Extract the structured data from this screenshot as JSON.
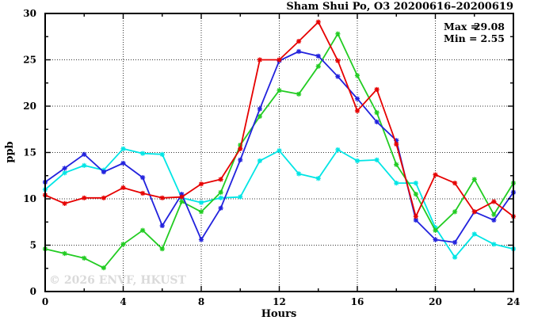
{
  "title": "Sham Shui Po, O3 20200616–20200619",
  "axes": {
    "xlabel": "Hours",
    "ylabel": "ppb"
  },
  "annotation": {
    "max_label": "Max =",
    "max_value": "29.08",
    "min_label": "Min =",
    "min_value": "2.55"
  },
  "watermark": "© 2026 ENVF, HKUST",
  "colors": {
    "red": "#e60000",
    "blue": "#2222dd",
    "green": "#22cc22",
    "cyan": "#00e5e5",
    "grid": "#333333",
    "frame": "#000000",
    "watermark": "#dadada"
  },
  "chart_data": {
    "type": "line",
    "title": "Sham Shui Po, O3 20200616–20200619",
    "xlabel": "Hours",
    "ylabel": "ppb",
    "xlim": [
      0,
      24
    ],
    "ylim": [
      0,
      30
    ],
    "x_major_ticks": [
      0,
      4,
      8,
      12,
      16,
      20,
      24
    ],
    "x_minor_ticks": [
      2,
      6,
      10,
      14,
      18,
      22
    ],
    "y_major_ticks": [
      0,
      5,
      10,
      15,
      20,
      25,
      30
    ],
    "y_minor_ticks": [
      2.5,
      7.5,
      12.5,
      17.5,
      22.5,
      27.5
    ],
    "grid": "dotted lines at interior major ticks",
    "legend": "none",
    "marker": "asterisk",
    "annotations": [
      "Max = 29.08",
      "Min =  2.55"
    ],
    "x": [
      0,
      1,
      2,
      3,
      4,
      5,
      6,
      7,
      8,
      9,
      10,
      11,
      12,
      13,
      14,
      15,
      16,
      17,
      18,
      19,
      20,
      21,
      22,
      23,
      24
    ],
    "series": [
      {
        "name": "cyan",
        "color": "#00e5e5",
        "values": [
          11.0,
          12.8,
          13.6,
          13.1,
          15.4,
          14.9,
          14.8,
          10.1,
          9.6,
          10.1,
          10.2,
          14.1,
          15.2,
          12.7,
          12.2,
          15.3,
          14.1,
          14.2,
          11.7,
          11.7,
          6.9,
          3.7,
          6.2,
          5.1,
          4.6
        ]
      },
      {
        "name": "green",
        "color": "#22cc22",
        "values": [
          4.6,
          4.1,
          3.6,
          2.55,
          5.1,
          6.6,
          4.6,
          9.7,
          8.6,
          10.7,
          15.8,
          18.9,
          21.7,
          21.3,
          24.3,
          27.8,
          23.3,
          19.3,
          13.7,
          10.5,
          6.6,
          8.6,
          12.1,
          8.3,
          11.7
        ]
      },
      {
        "name": "blue",
        "color": "#2222dd",
        "values": [
          11.8,
          13.3,
          14.8,
          12.9,
          13.85,
          12.3,
          7.1,
          10.5,
          5.6,
          9.0,
          14.2,
          19.7,
          24.9,
          25.9,
          25.4,
          23.2,
          20.8,
          18.3,
          16.3,
          7.7,
          5.6,
          5.3,
          8.6,
          7.7,
          10.7
        ]
      },
      {
        "name": "red",
        "color": "#e60000",
        "values": [
          10.4,
          9.5,
          10.1,
          10.1,
          11.2,
          10.6,
          10.1,
          10.2,
          11.6,
          12.1,
          15.4,
          25.0,
          25.0,
          27.0,
          29.08,
          24.9,
          19.5,
          21.8,
          15.9,
          8.1,
          12.6,
          11.7,
          8.6,
          9.7,
          8.1
        ]
      }
    ]
  }
}
